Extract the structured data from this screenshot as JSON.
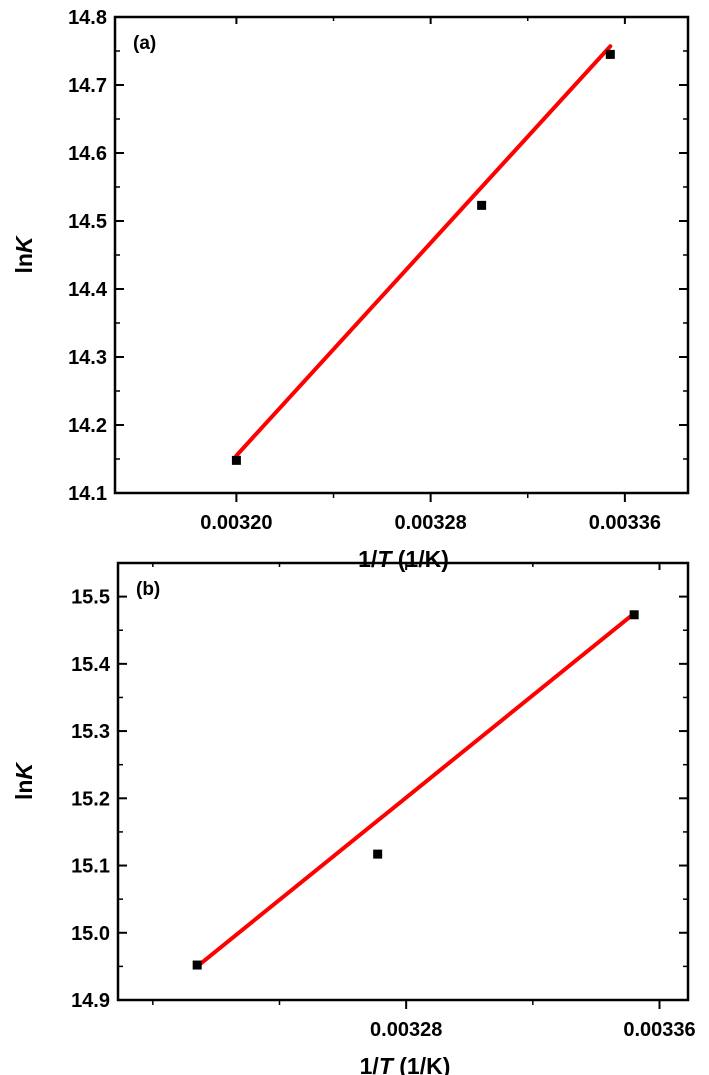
{
  "chart_data": [
    {
      "type": "scatter",
      "panel_label": "(a)",
      "xlabel": {
        "prefix": "1/",
        "var": "T",
        "unit": " (1/K)"
      },
      "ylabel": {
        "prefix": "ln",
        "var": "K"
      },
      "xlim": [
        0.00315,
        0.003386
      ],
      "ylim": [
        14.1,
        14.8
      ],
      "xticks": [
        0.0032,
        0.00328,
        0.00336
      ],
      "xtick_labels": [
        "0.00320",
        "0.00328",
        "0.00336"
      ],
      "xminor": [
        0.00324,
        0.00332
      ],
      "yticks": [
        14.1,
        14.2,
        14.3,
        14.4,
        14.5,
        14.6,
        14.7,
        14.8
      ],
      "ytick_labels": [
        "14.1",
        "14.2",
        "14.3",
        "14.4",
        "14.5",
        "14.6",
        "14.7",
        "14.8"
      ],
      "yminor": [
        14.15,
        14.25,
        14.35,
        14.45,
        14.55,
        14.65,
        14.75
      ],
      "points": [
        {
          "x": 0.0032,
          "y": 14.148
        },
        {
          "x": 0.003301,
          "y": 14.523
        },
        {
          "x": 0.003354,
          "y": 14.745
        }
      ],
      "fit": {
        "x": [
          0.0032,
          0.003354
        ],
        "y": [
          14.155,
          14.757
        ],
        "color": "#ff0000"
      },
      "grid": false,
      "legend": "none"
    },
    {
      "type": "scatter",
      "panel_label": "(b)",
      "xlabel": {
        "prefix": "1/",
        "var": "T",
        "unit": " (1/K)"
      },
      "ylabel": {
        "prefix": "ln",
        "var": "K"
      },
      "xlim": [
        0.003189,
        0.003369
      ],
      "ylim": [
        14.9,
        15.55
      ],
      "xticks": [
        0.00328,
        0.00336
      ],
      "xtick_labels": [
        "0.00328",
        "0.00336"
      ],
      "xminor": [
        0.0032,
        0.00324,
        0.00332
      ],
      "yticks": [
        14.9,
        15.0,
        15.1,
        15.2,
        15.3,
        15.4,
        15.5
      ],
      "ytick_labels": [
        "14.9",
        "15.0",
        "15.1",
        "15.2",
        "15.3",
        "15.4",
        "15.5"
      ],
      "yminor": [
        14.95,
        15.05,
        15.15,
        15.25,
        15.35,
        15.45
      ],
      "points": [
        {
          "x": 0.003214,
          "y": 14.952
        },
        {
          "x": 0.003271,
          "y": 15.117
        },
        {
          "x": 0.003352,
          "y": 15.473
        }
      ],
      "fit": {
        "x": [
          0.003214,
          0.003352
        ],
        "y": [
          14.95,
          15.475
        ],
        "color": "#ff0000"
      },
      "grid": false,
      "legend": "none"
    }
  ]
}
